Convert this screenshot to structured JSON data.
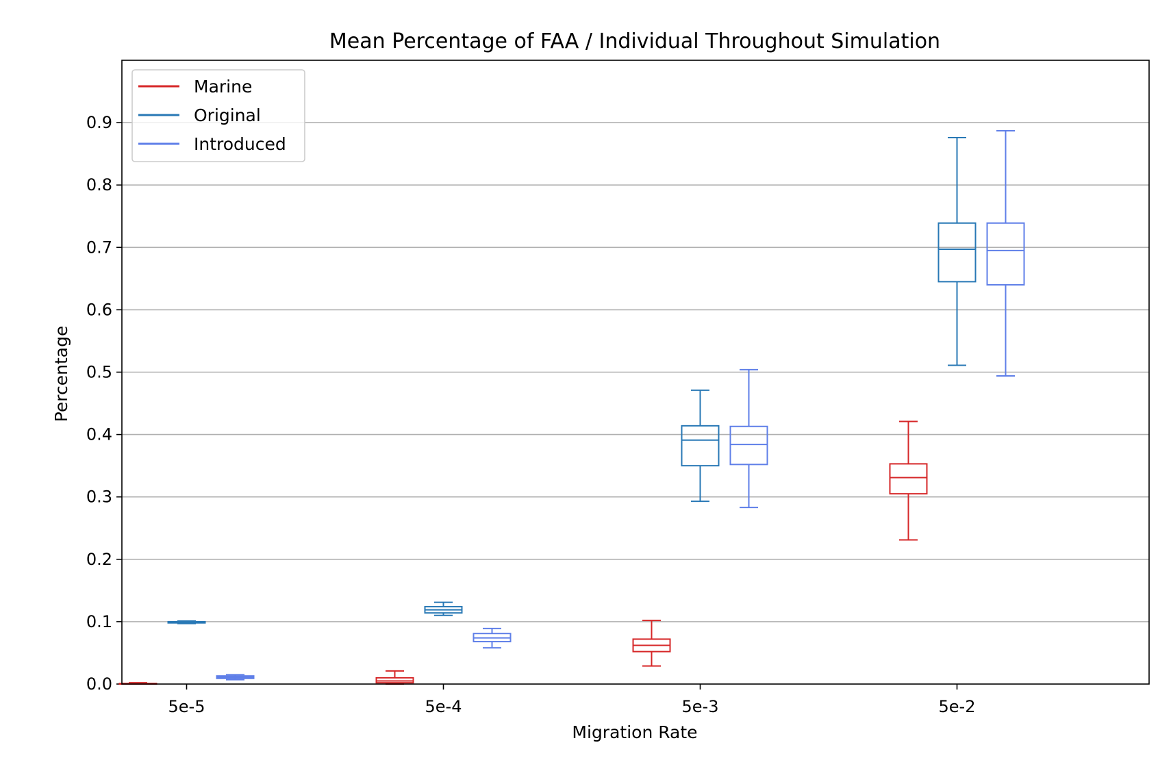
{
  "chart_data": {
    "type": "box",
    "title": "Mean Percentage of FAA / Individual Throughout Simulation",
    "xlabel": "Migration Rate",
    "ylabel": "Percentage",
    "categories": [
      "5e-5",
      "5e-4",
      "5e-3",
      "5e-2"
    ],
    "ylim": [
      0,
      1.0
    ],
    "yticks": [
      0.0,
      0.1,
      0.2,
      0.3,
      0.4,
      0.5,
      0.6,
      0.7,
      0.8,
      0.9
    ],
    "ytick_labels": [
      "0.0",
      "0.1",
      "0.2",
      "0.3",
      "0.4",
      "0.5",
      "0.6",
      "0.7",
      "0.8",
      "0.9"
    ],
    "grid": "y",
    "legend_position": "top-left",
    "series": [
      {
        "name": "Marine",
        "color": "#d62728",
        "boxes": [
          {
            "whislo": 0.0,
            "q1": 0.0,
            "med": 0.0,
            "q3": 0.001,
            "whishi": 0.002
          },
          {
            "whislo": 0.0,
            "q1": 0.002,
            "med": 0.005,
            "q3": 0.01,
            "whishi": 0.021
          },
          {
            "whislo": 0.029,
            "q1": 0.052,
            "med": 0.062,
            "q3": 0.072,
            "whishi": 0.102
          },
          {
            "whislo": 0.231,
            "q1": 0.305,
            "med": 0.331,
            "q3": 0.353,
            "whishi": 0.421
          }
        ]
      },
      {
        "name": "Original",
        "color": "#2878b5",
        "boxes": [
          {
            "whislo": 0.097,
            "q1": 0.098,
            "med": 0.099,
            "q3": 0.1,
            "whishi": 0.101
          },
          {
            "whislo": 0.11,
            "q1": 0.114,
            "med": 0.119,
            "q3": 0.124,
            "whishi": 0.131
          },
          {
            "whislo": 0.293,
            "q1": 0.35,
            "med": 0.391,
            "q3": 0.414,
            "whishi": 0.471
          },
          {
            "whislo": 0.511,
            "q1": 0.645,
            "med": 0.697,
            "q3": 0.739,
            "whishi": 0.876
          }
        ]
      },
      {
        "name": "Introduced",
        "color": "#5f7fe8",
        "boxes": [
          {
            "whislo": 0.007,
            "q1": 0.009,
            "med": 0.011,
            "q3": 0.013,
            "whishi": 0.015
          },
          {
            "whislo": 0.058,
            "q1": 0.068,
            "med": 0.074,
            "q3": 0.081,
            "whishi": 0.089
          },
          {
            "whislo": 0.283,
            "q1": 0.352,
            "med": 0.384,
            "q3": 0.413,
            "whishi": 0.504
          },
          {
            "whislo": 0.494,
            "q1": 0.64,
            "med": 0.695,
            "q3": 0.739,
            "whishi": 0.887
          }
        ]
      }
    ]
  }
}
